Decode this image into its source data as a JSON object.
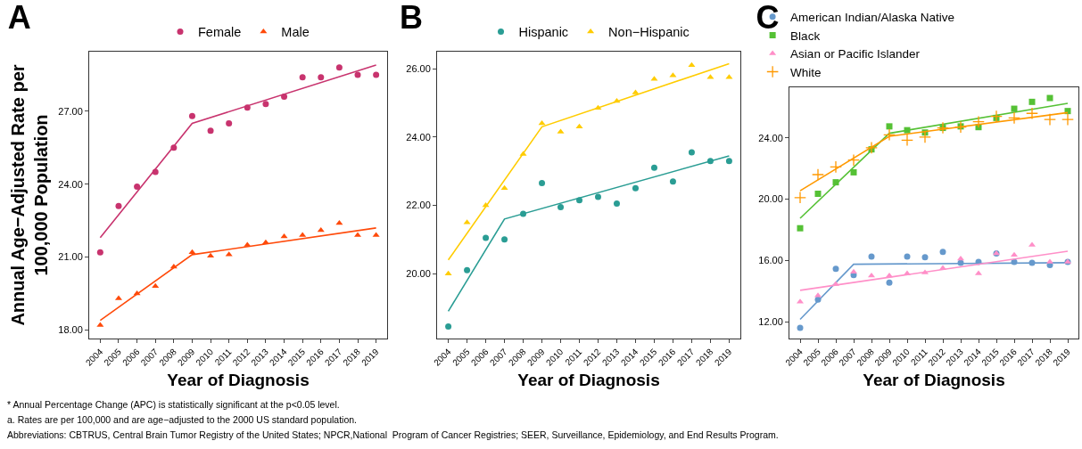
{
  "chart_data": [
    {
      "type": "scatter",
      "title": "A",
      "xlabel": "Year of Diagnosis",
      "ylabel": "Annual Age−Adjusted Rate per 100,000 Population",
      "x": [
        2004,
        2005,
        2006,
        2007,
        2008,
        2009,
        2010,
        2011,
        2012,
        2013,
        2014,
        2015,
        2016,
        2017,
        2018,
        2019
      ],
      "xlim": [
        2003.4,
        2019.6
      ],
      "xticks": [
        2004,
        2005,
        2006,
        2007,
        2008,
        2009,
        2010,
        2011,
        2012,
        2013,
        2014,
        2015,
        2016,
        2017,
        2018,
        2019
      ],
      "ylim": [
        17.65,
        29.45
      ],
      "yticks": [
        {
          "value": 18,
          "label": "18.00"
        },
        {
          "value": 21,
          "label": "21.00"
        },
        {
          "value": 24,
          "label": "24.00"
        },
        {
          "value": 27,
          "label": "27.00"
        }
      ],
      "grid": false,
      "legend": "top",
      "series": [
        {
          "name": "Female",
          "marker": "circle",
          "color": "#c8336e",
          "values": [
            21.2,
            23.1,
            23.9,
            24.5,
            25.5,
            26.8,
            26.2,
            26.5,
            27.15,
            27.3,
            27.6,
            28.4,
            28.4,
            28.8,
            28.5,
            28.5
          ]
        },
        {
          "type": "line",
          "marker": "none",
          "color": "#c8336e",
          "x": [
            2004,
            2009,
            2019
          ],
          "values": [
            21.8,
            26.5,
            28.9
          ]
        },
        {
          "name": "Male",
          "marker": "triangle",
          "color": "#ff4a0a",
          "values": [
            18.2,
            19.3,
            19.5,
            19.8,
            20.6,
            21.2,
            21.05,
            21.1,
            21.5,
            21.6,
            21.85,
            21.9,
            22.1,
            22.4,
            21.9,
            21.9
          ]
        },
        {
          "type": "line",
          "marker": "none",
          "color": "#ff4a0a",
          "x": [
            2004,
            2009,
            2019
          ],
          "values": [
            18.4,
            21.1,
            22.2
          ]
        }
      ],
      "annotations": [
        "* Annual Percentage Change (APC) is statistically significant at the p<0.05 level.",
        "a. Rates are per 100,000 and are age−adjusted to the 2000 US standard population.",
        "Abbreviations: CBTRUS, Central Brain Tumor Registry of the United States; NPCR,National  Program of Cancer Registries; SEER, Surveillance, Epidemiology, and End Results Program."
      ]
    },
    {
      "type": "scatter",
      "title": "B",
      "xlabel": "Year of Diagnosis",
      "x": [
        2004,
        2005,
        2006,
        2007,
        2008,
        2009,
        2010,
        2011,
        2012,
        2013,
        2014,
        2015,
        2016,
        2017,
        2018,
        2019
      ],
      "xlim": [
        2003.4,
        2019.6
      ],
      "xticks": [
        2004,
        2005,
        2006,
        2007,
        2008,
        2009,
        2010,
        2011,
        2012,
        2013,
        2014,
        2015,
        2016,
        2017,
        2018,
        2019
      ],
      "ylim": [
        18.1,
        26.5
      ],
      "yticks": [
        {
          "value": 20,
          "label": "20.00"
        },
        {
          "value": 22,
          "label": "22.00"
        },
        {
          "value": 24,
          "label": "24.00"
        },
        {
          "value": 26,
          "label": "26.00"
        }
      ],
      "grid": false,
      "legend": "top",
      "series": [
        {
          "name": "Hispanic",
          "marker": "circle",
          "color": "#2a9d94",
          "values": [
            18.45,
            20.1,
            21.05,
            21.0,
            21.75,
            22.65,
            21.95,
            22.15,
            22.25,
            22.05,
            22.5,
            23.1,
            22.7,
            23.55,
            23.3,
            23.3
          ]
        },
        {
          "type": "line",
          "marker": "none",
          "color": "#2a9d94",
          "x": [
            2004,
            2007,
            2019
          ],
          "values": [
            18.9,
            21.6,
            23.45
          ]
        },
        {
          "name": "Non−Hispanic",
          "marker": "triangle",
          "color": "#ffcc00",
          "values": [
            20.0,
            21.5,
            22.0,
            22.5,
            23.5,
            24.4,
            24.15,
            24.3,
            24.85,
            25.05,
            25.3,
            25.7,
            25.8,
            26.1,
            25.75,
            25.75
          ]
        },
        {
          "type": "line",
          "marker": "none",
          "color": "#ffcc00",
          "x": [
            2004,
            2009,
            2019
          ],
          "values": [
            20.4,
            24.3,
            26.15
          ]
        }
      ]
    },
    {
      "type": "scatter",
      "title": "C",
      "xlabel": "Year of Diagnosis",
      "x": [
        2004,
        2005,
        2006,
        2007,
        2008,
        2009,
        2010,
        2011,
        2012,
        2013,
        2014,
        2015,
        2016,
        2017,
        2018,
        2019
      ],
      "xlim": [
        2003.4,
        2019.6
      ],
      "xticks": [
        2004,
        2005,
        2006,
        2007,
        2008,
        2009,
        2010,
        2011,
        2012,
        2013,
        2014,
        2015,
        2016,
        2017,
        2018,
        2019
      ],
      "ylim": [
        10.9,
        27.3
      ],
      "yticks": [
        {
          "value": 12,
          "label": "12.00"
        },
        {
          "value": 16,
          "label": "16.00"
        },
        {
          "value": 20,
          "label": "20.00"
        },
        {
          "value": 24,
          "label": "24.00"
        }
      ],
      "grid": false,
      "legend": "top",
      "series": [
        {
          "name": "American Indian/Alaska Native",
          "marker": "circle",
          "color": "#6699cc",
          "values": [
            11.6,
            13.45,
            15.45,
            15.05,
            16.25,
            14.55,
            16.25,
            16.2,
            16.55,
            15.85,
            15.9,
            16.45,
            15.9,
            15.85,
            15.7,
            15.9
          ]
        },
        {
          "type": "line",
          "marker": "none",
          "color": "#6699cc",
          "x": [
            2004,
            2007,
            2019
          ],
          "values": [
            12.15,
            15.75,
            15.85
          ]
        },
        {
          "name": "Black",
          "marker": "square",
          "color": "#55c135",
          "values": [
            18.1,
            20.35,
            21.1,
            21.75,
            23.25,
            24.75,
            24.5,
            24.35,
            24.65,
            24.75,
            24.7,
            25.3,
            25.9,
            26.35,
            26.6,
            25.75
          ]
        },
        {
          "type": "line",
          "marker": "none",
          "color": "#55c135",
          "x": [
            2004,
            2009,
            2019
          ],
          "values": [
            18.75,
            24.3,
            26.25
          ]
        },
        {
          "name": "Asian or Pacific Islander",
          "marker": "triangle",
          "color": "#ff8fc8",
          "values": [
            13.3,
            13.7,
            14.45,
            15.25,
            15.0,
            15.0,
            15.15,
            15.2,
            15.5,
            16.1,
            15.15,
            16.45,
            16.35,
            17.0,
            15.9,
            15.9
          ]
        },
        {
          "type": "line",
          "marker": "none",
          "color": "#ff8fc8",
          "x": [
            2004,
            2019
          ],
          "values": [
            14.05,
            16.6
          ]
        },
        {
          "name": "White",
          "marker": "cross",
          "color": "#ff9900",
          "values": [
            20.1,
            21.6,
            22.1,
            22.55,
            23.35,
            24.2,
            23.85,
            24.05,
            24.65,
            24.7,
            25.05,
            25.4,
            25.3,
            25.6,
            25.2,
            25.2
          ]
        },
        {
          "type": "line",
          "marker": "none",
          "color": "#ff9900",
          "x": [
            2004,
            2009,
            2019
          ],
          "values": [
            20.55,
            24.1,
            25.65
          ]
        }
      ]
    }
  ]
}
